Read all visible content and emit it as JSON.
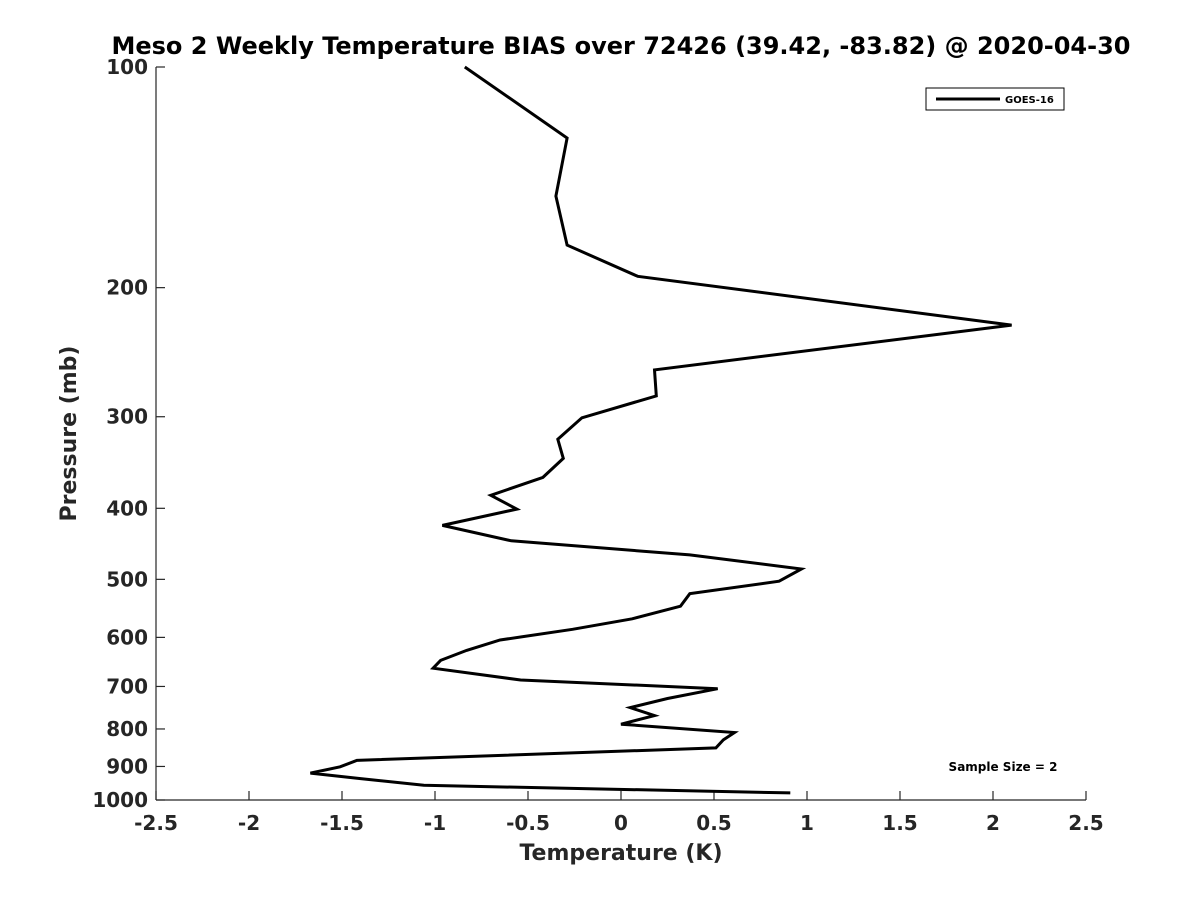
{
  "chart_data": {
    "type": "line",
    "title": "Meso 2 Weekly Temperature BIAS over 72426 (39.42, -83.82) @ 2020-04-30",
    "xlabel": "Temperature (K)",
    "ylabel": "Pressure (mb)",
    "xlim": [
      -2.5,
      2.5
    ],
    "ylim": [
      1000,
      100
    ],
    "y_scale": "log",
    "x_ticks": [
      "-2.5",
      "-2",
      "-1.5",
      "-1",
      "-0.5",
      "0",
      "0.5",
      "1",
      "1.5",
      "2",
      "2.5"
    ],
    "y_ticks": [
      "100",
      "200",
      "300",
      "400",
      "500",
      "600",
      "700",
      "800",
      "900",
      "1000"
    ],
    "grid": false,
    "legend_position": "top-right",
    "annotation": "Sample Size = 2",
    "series": [
      {
        "name": "GOES-16",
        "color": "#000000",
        "points": [
          {
            "x": -0.84,
            "p": 100
          },
          {
            "x": -0.29,
            "p": 125
          },
          {
            "x": -0.35,
            "p": 150
          },
          {
            "x": -0.29,
            "p": 175
          },
          {
            "x": 0.09,
            "p": 193
          },
          {
            "x": 2.1,
            "p": 225
          },
          {
            "x": 0.18,
            "p": 259
          },
          {
            "x": 0.19,
            "p": 281
          },
          {
            "x": -0.21,
            "p": 301
          },
          {
            "x": -0.34,
            "p": 322
          },
          {
            "x": -0.31,
            "p": 342
          },
          {
            "x": -0.42,
            "p": 363
          },
          {
            "x": -0.7,
            "p": 384
          },
          {
            "x": -0.56,
            "p": 401
          },
          {
            "x": -0.96,
            "p": 422
          },
          {
            "x": -0.59,
            "p": 443
          },
          {
            "x": 0.37,
            "p": 463
          },
          {
            "x": 0.97,
            "p": 484
          },
          {
            "x": 0.85,
            "p": 503
          },
          {
            "x": 0.37,
            "p": 523
          },
          {
            "x": 0.32,
            "p": 544
          },
          {
            "x": 0.06,
            "p": 566
          },
          {
            "x": -0.26,
            "p": 585
          },
          {
            "x": -0.65,
            "p": 605
          },
          {
            "x": -0.83,
            "p": 625
          },
          {
            "x": -0.97,
            "p": 645
          },
          {
            "x": -1.01,
            "p": 661
          },
          {
            "x": -0.54,
            "p": 686
          },
          {
            "x": 0.52,
            "p": 705
          },
          {
            "x": 0.25,
            "p": 727
          },
          {
            "x": 0.05,
            "p": 748
          },
          {
            "x": 0.18,
            "p": 767
          },
          {
            "x": 0.0,
            "p": 788
          },
          {
            "x": 0.61,
            "p": 809
          },
          {
            "x": 0.55,
            "p": 828
          },
          {
            "x": 0.51,
            "p": 849
          },
          {
            "x": -1.42,
            "p": 883
          },
          {
            "x": -1.51,
            "p": 901
          },
          {
            "x": -1.67,
            "p": 919
          },
          {
            "x": -1.4,
            "p": 935
          },
          {
            "x": -1.06,
            "p": 955
          },
          {
            "x": 0.91,
            "p": 978
          }
        ]
      }
    ]
  }
}
